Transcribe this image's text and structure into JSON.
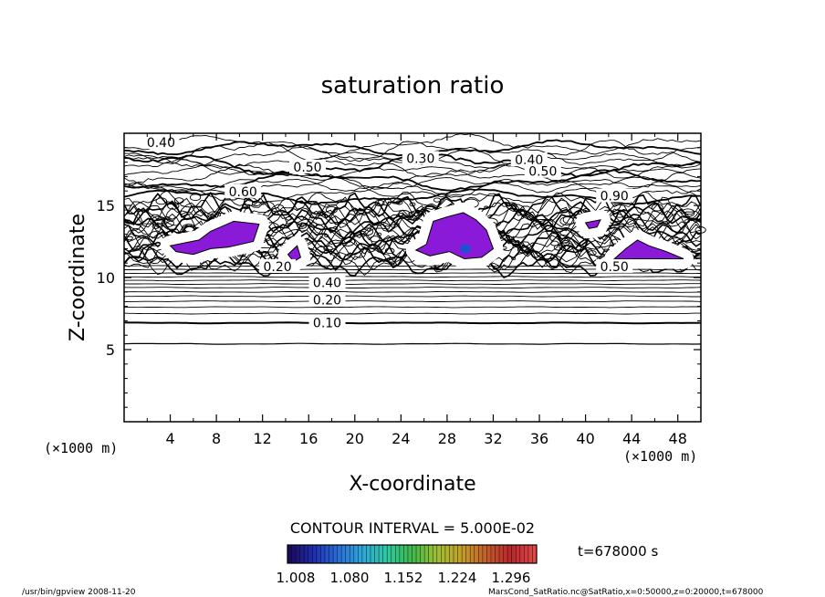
{
  "chart_data": {
    "type": "contour",
    "title": "saturation ratio",
    "xlabel": "X-coordinate",
    "ylabel": "Z-coordinate",
    "x_unit": "(×1000 m)",
    "x_unit_right": "(×1000 m)",
    "xlim": [
      0,
      50
    ],
    "ylim": [
      0,
      20
    ],
    "x_ticks": [
      4,
      8,
      12,
      16,
      20,
      24,
      28,
      32,
      36,
      40,
      44,
      48
    ],
    "y_ticks": [
      5,
      10,
      15
    ],
    "grid": false,
    "contour_interval_text": "CONTOUR INTERVAL = 5.000E-02",
    "contour_interval": 0.05,
    "contour_labels": [
      {
        "text": "0.40",
        "x": 3.2,
        "z": 19.3
      },
      {
        "text": "0.50",
        "x": 15.9,
        "z": 17.6
      },
      {
        "text": "0.30",
        "x": 25.7,
        "z": 18.2
      },
      {
        "text": "0.40",
        "x": 35.1,
        "z": 18.1
      },
      {
        "text": "0.50",
        "x": 36.3,
        "z": 17.3
      },
      {
        "text": "0.60",
        "x": 10.3,
        "z": 15.9
      },
      {
        "text": "0.90",
        "x": 42.5,
        "z": 15.6
      },
      {
        "text": "0.20",
        "x": 13.3,
        "z": 10.7
      },
      {
        "text": "0.50",
        "x": 42.5,
        "z": 10.7
      },
      {
        "text": "0.40",
        "x": 17.6,
        "z": 9.6
      },
      {
        "text": "0.20",
        "x": 17.6,
        "z": 8.4
      },
      {
        "text": "0.10",
        "x": 17.6,
        "z": 6.8
      }
    ],
    "horizontal_contours_z": [
      5.4,
      6.85,
      7.5,
      7.95,
      8.35,
      8.7,
      9.0,
      9.3,
      9.55,
      9.8,
      10.05,
      10.3,
      10.55,
      10.8
    ],
    "supersaturated_regions": [
      {
        "name": "patch-1",
        "points": [
          [
            4,
            12.2
          ],
          [
            6.5,
            12.6
          ],
          [
            7.5,
            13.2
          ],
          [
            9.5,
            13.9
          ],
          [
            11.7,
            13.7
          ],
          [
            11.2,
            12.5
          ],
          [
            9,
            12.1
          ],
          [
            7.5,
            12.0
          ],
          [
            6,
            11.6
          ],
          [
            4.5,
            11.8
          ]
        ]
      },
      {
        "name": "patch-2",
        "points": [
          [
            14.2,
            11.6
          ],
          [
            15.0,
            12.2
          ],
          [
            15.3,
            11.4
          ],
          [
            14.7,
            11.1
          ]
        ]
      },
      {
        "name": "patch-3",
        "points": [
          [
            25.3,
            11.9
          ],
          [
            26.2,
            12.3
          ],
          [
            26.8,
            13.9
          ],
          [
            28,
            14.2
          ],
          [
            29.4,
            14.5
          ],
          [
            30.5,
            14.0
          ],
          [
            31.4,
            13.3
          ],
          [
            32.0,
            12.0
          ],
          [
            31.0,
            11.4
          ],
          [
            29.5,
            11.3
          ],
          [
            28.2,
            11.8
          ],
          [
            26.5,
            11.5
          ]
        ]
      },
      {
        "name": "patch-4",
        "points": [
          [
            40.0,
            13.8
          ],
          [
            41.3,
            14.0
          ],
          [
            41.0,
            13.5
          ],
          [
            40.3,
            13.4
          ]
        ]
      },
      {
        "name": "patch-5",
        "points": [
          [
            42.5,
            11.3
          ],
          [
            43.5,
            12.0
          ],
          [
            44.5,
            12.6
          ],
          [
            45.5,
            12.2
          ],
          [
            47.0,
            11.8
          ],
          [
            48.5,
            11.3
          ]
        ]
      }
    ],
    "colorbar": {
      "ticks": [
        "1.008",
        "1.080",
        "1.152",
        "1.224",
        "1.296"
      ],
      "range": [
        1.008,
        1.296
      ],
      "colors": [
        "#1a0a5e",
        "#1f2fb0",
        "#2a6fd8",
        "#2fa8d8",
        "#2fc9a0",
        "#3fb84a",
        "#9fbe36",
        "#c4a02a",
        "#c4602a",
        "#b8262a",
        "#e04848"
      ]
    },
    "fill_color": "#8a1ad8",
    "core_color": "#2050d0"
  },
  "time_label": "t=678000 s",
  "footer": {
    "left": "/usr/bin/gpview  2008-11-20",
    "right": "MarsCond_SatRatio.nc@SatRatio,x=0:50000,z=0:20000,t=678000"
  }
}
